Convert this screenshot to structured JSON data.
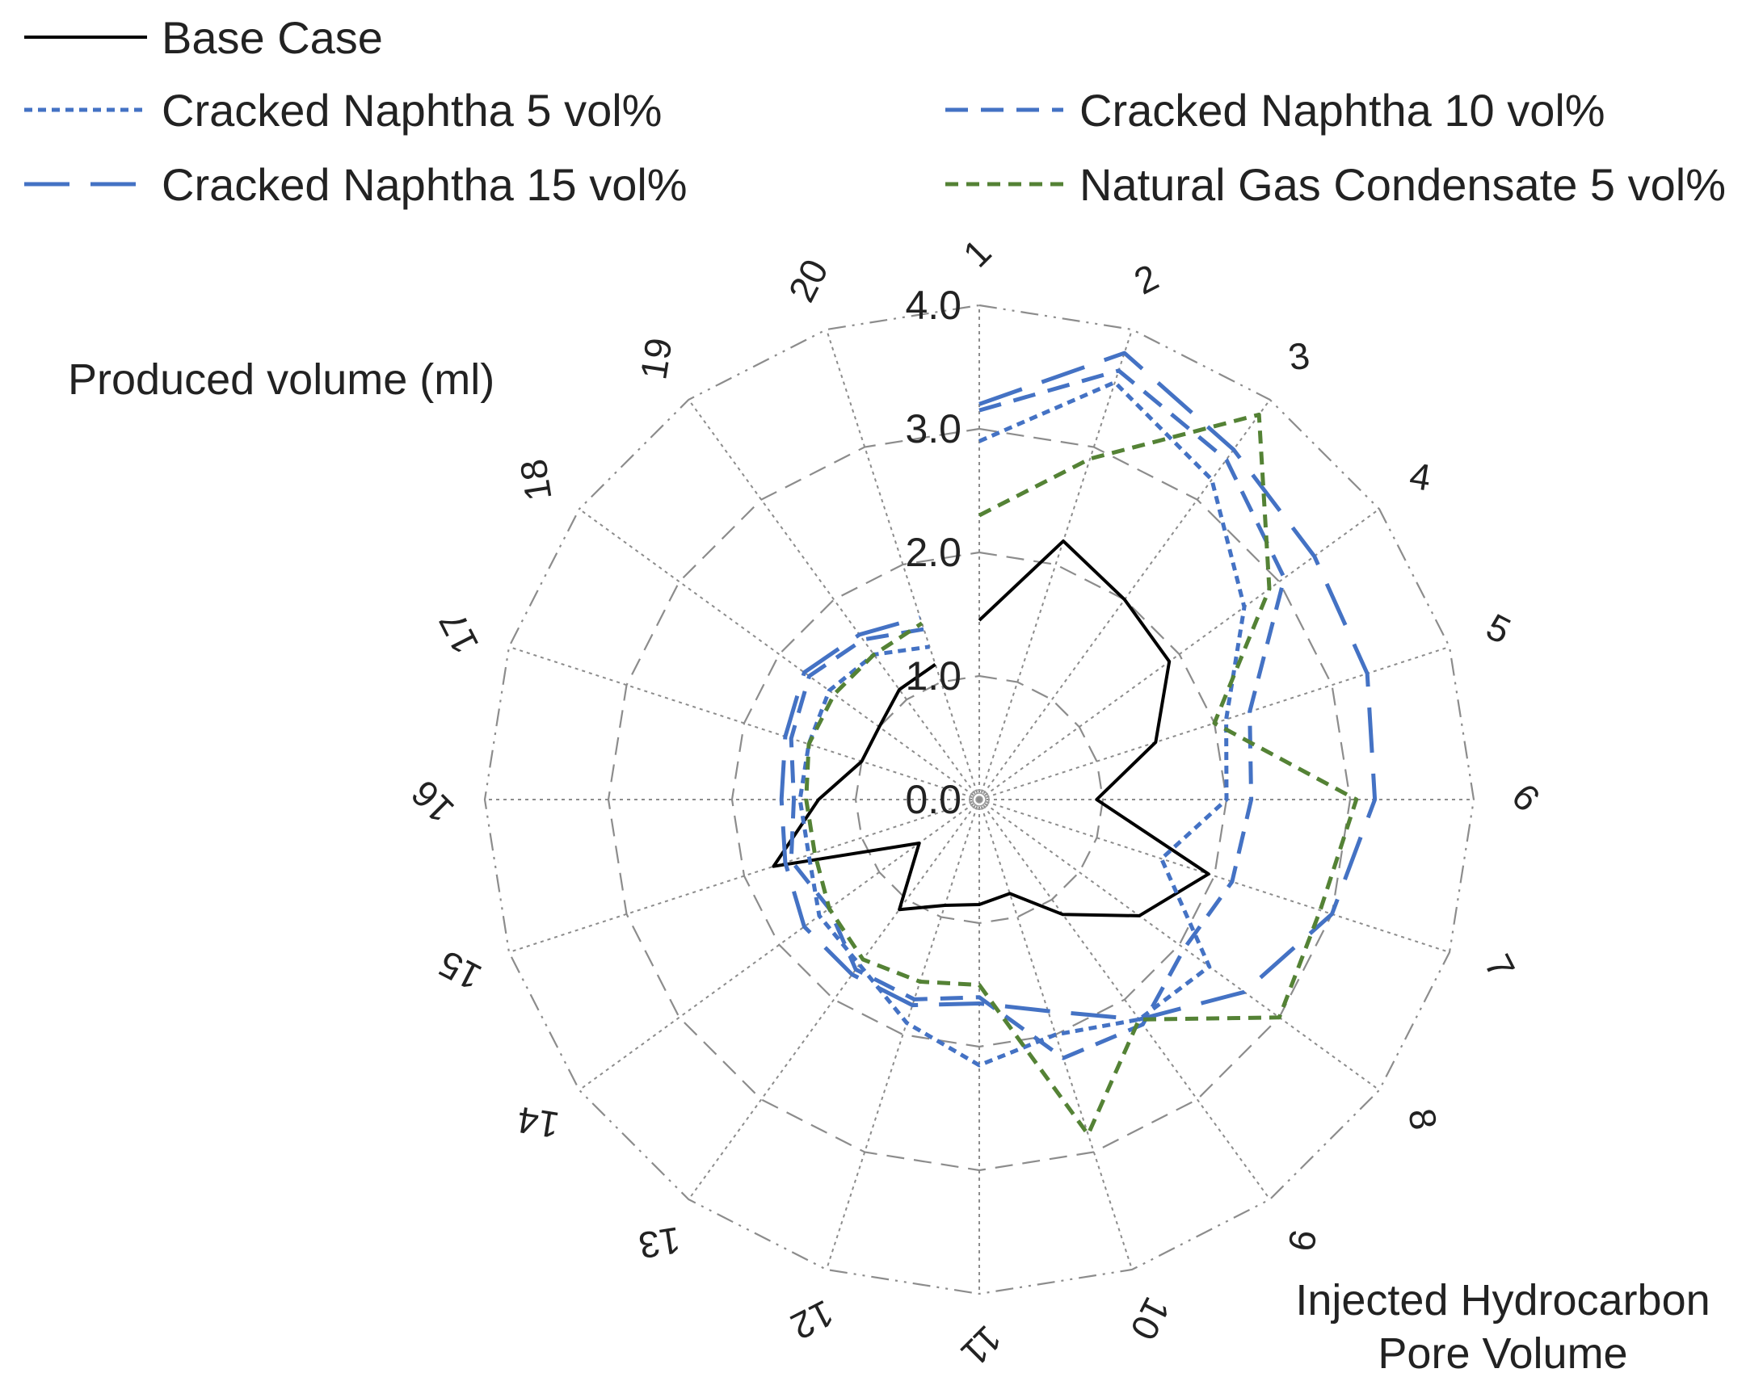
{
  "chart_data": {
    "type": "radar",
    "title": "",
    "y_axis_title": "Produced volume (ml)",
    "x_axis_title_lines": [
      "Injected Hydrocarbon",
      "Pore Volume"
    ],
    "categories": [
      "1",
      "2",
      "3",
      "4",
      "5",
      "6",
      "7",
      "8",
      "9",
      "10",
      "11",
      "12",
      "13",
      "14",
      "15",
      "16",
      "17",
      "18",
      "19",
      "20"
    ],
    "radial_range": [
      0,
      4
    ],
    "radial_ticks": [
      "0.0",
      "1.0",
      "2.0",
      "3.0",
      "4.0"
    ],
    "radial_tick_values": [
      0,
      1,
      2,
      3,
      4
    ],
    "series": [
      {
        "name": "Base Case",
        "color": "#000000",
        "dash": "solid",
        "values": [
          1.45,
          2.2,
          2.0,
          1.9,
          1.5,
          0.95,
          1.95,
          1.6,
          1.15,
          0.8,
          0.85,
          0.9,
          1.1,
          0.6,
          1.75,
          1.3,
          1.0,
          1.0,
          1.1,
          1.15
        ]
      },
      {
        "name": "Cracked Naphtha 5 vol%",
        "color": "#4472C4",
        "dash": "dot",
        "values": [
          2.9,
          3.55,
          3.2,
          2.65,
          2.1,
          2.0,
          1.55,
          2.3,
          2.2,
          2.0,
          2.15,
          1.9,
          1.65,
          1.6,
          1.45,
          1.45,
          1.45,
          1.5,
          1.45,
          1.3
        ]
      },
      {
        "name": "Cracked Naphtha 10 vol%",
        "color": "#4472C4",
        "dash": "dash",
        "values": [
          3.15,
          3.65,
          3.4,
          3.05,
          2.3,
          2.2,
          2.15,
          2.05,
          2.25,
          2.2,
          1.6,
          1.7,
          1.7,
          1.5,
          1.6,
          1.5,
          1.6,
          1.7,
          1.6,
          1.45
        ]
      },
      {
        "name": "Cracked Naphtha 15 vol%",
        "color": "#4472C4",
        "dash": "longdash",
        "values": [
          3.2,
          3.8,
          3.5,
          3.35,
          3.3,
          3.2,
          3.0,
          2.65,
          2.2,
          1.8,
          1.65,
          1.75,
          1.75,
          1.75,
          1.65,
          1.6,
          1.65,
          1.75,
          1.65,
          1.55
        ]
      },
      {
        "name": "Natural Gas Condensate 5 vol%",
        "color": "#548235",
        "dash": "shortdash",
        "values": [
          2.3,
          2.9,
          3.85,
          2.9,
          2.0,
          3.05,
          2.9,
          3.0,
          2.2,
          2.85,
          1.5,
          1.55,
          1.6,
          1.5,
          1.4,
          1.4,
          1.45,
          1.45,
          1.45,
          1.5
        ]
      }
    ]
  }
}
